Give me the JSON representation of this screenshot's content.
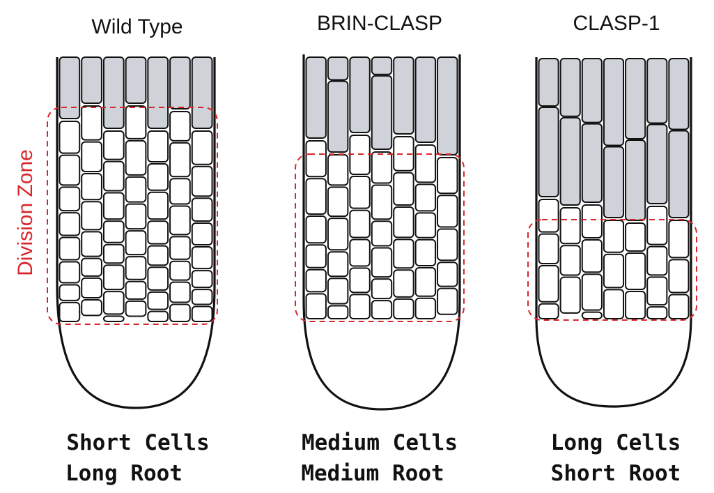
{
  "colors": {
    "outline": "#111111",
    "division_zone": "#d9262b",
    "elongated_cell": "#cfd3d9",
    "dividing_cell": "#ffffff"
  },
  "division_zone_label": "Division Zone",
  "panels": [
    {
      "title": "Wild Type",
      "caption_line1": "Short Cells",
      "caption_line2": "Long Root"
    },
    {
      "title": "BRIN-CLASP",
      "caption_line1": "Medium Cells",
      "caption_line2": "Medium Root"
    },
    {
      "title": "CLASP-1",
      "caption_line1": "Long Cells",
      "caption_line2": "Short Root"
    }
  ]
}
